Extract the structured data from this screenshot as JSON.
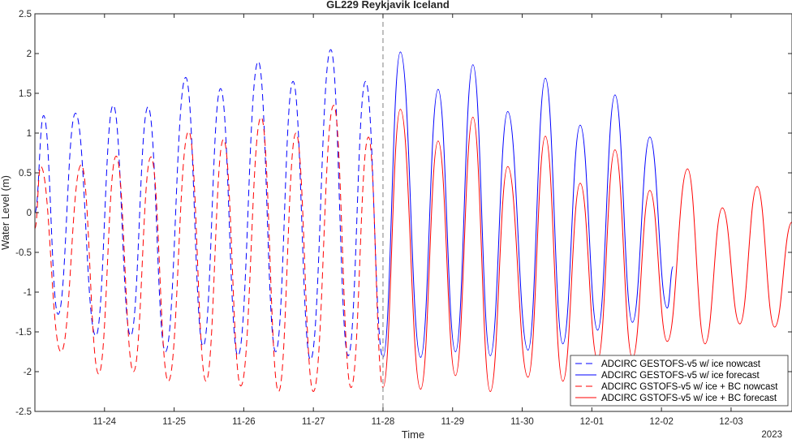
{
  "chart_data": {
    "type": "line",
    "title": "GL229 Reykjavik Iceland",
    "xlabel": "Time",
    "ylabel": "Water Level (m)",
    "year_label": "2023",
    "xlim": [
      "2022-11-23T00:00",
      "2022-12-03T21:00"
    ],
    "ylim": [
      -2.5,
      2.5
    ],
    "yticks": [
      -2.5,
      -2,
      -1.5,
      -1,
      -0.5,
      0,
      0.5,
      1,
      1.5,
      2,
      2.5
    ],
    "ytick_labels": [
      "-2.5",
      "-2",
      "-1.5",
      "-1",
      "-0.5",
      "0",
      "0.5",
      "1",
      "1.5",
      "2",
      "2.5"
    ],
    "xticks": [
      "2022-11-24",
      "2022-11-25",
      "2022-11-26",
      "2022-11-27",
      "2022-11-28",
      "2022-11-29",
      "2022-11-30",
      "2022-12-01",
      "2022-12-02",
      "2022-12-03"
    ],
    "xtick_labels": [
      "11-24",
      "11-25",
      "11-26",
      "11-27",
      "11-28",
      "11-29",
      "11-30",
      "12-01",
      "12-02",
      "12-03"
    ],
    "nowcast_forecast_divider": "2022-11-28T00:00",
    "legend_location": "lower-right",
    "series": [
      {
        "name": "ADCIRC GESTOFS-v5 w/ ice nowcast",
        "color": "#0000ff",
        "linestyle": "dashed",
        "points": [
          [
            "2022-11-23T00:00",
            0.0
          ],
          [
            "2022-11-23T03:00",
            1.22
          ],
          [
            "2022-11-23T08:00",
            -1.28
          ],
          [
            "2022-11-23T14:00",
            1.25
          ],
          [
            "2022-11-23T21:00",
            -1.55
          ],
          [
            "2022-11-24T03:00",
            1.35
          ],
          [
            "2022-11-24T09:00",
            -1.55
          ],
          [
            "2022-11-24T15:00",
            1.33
          ],
          [
            "2022-11-24T21:00",
            -1.75
          ],
          [
            "2022-11-25T04:00",
            1.7
          ],
          [
            "2022-11-25T10:00",
            -1.68
          ],
          [
            "2022-11-25T16:00",
            1.56
          ],
          [
            "2022-11-25T22:00",
            -1.8
          ],
          [
            "2022-11-26T05:00",
            1.9
          ],
          [
            "2022-11-26T11:00",
            -1.75
          ],
          [
            "2022-11-26T17:00",
            1.65
          ],
          [
            "2022-11-26T23:00",
            -1.85
          ],
          [
            "2022-11-27T06:00",
            2.05
          ],
          [
            "2022-11-27T12:00",
            -1.8
          ],
          [
            "2022-11-27T18:00",
            1.65
          ],
          [
            "2022-11-28T00:00",
            -1.82
          ]
        ]
      },
      {
        "name": "ADCIRC GESTOFS-v5 w/ ice forecast",
        "color": "#0000ff",
        "linestyle": "solid",
        "points": [
          [
            "2022-11-28T00:00",
            -1.82
          ],
          [
            "2022-11-28T06:00",
            2.02
          ],
          [
            "2022-11-28T13:00",
            -1.82
          ],
          [
            "2022-11-28T19:00",
            1.55
          ],
          [
            "2022-11-29T01:00",
            -1.75
          ],
          [
            "2022-11-29T07:00",
            1.86
          ],
          [
            "2022-11-29T13:00",
            -1.8
          ],
          [
            "2022-11-29T19:00",
            1.27
          ],
          [
            "2022-11-30T02:00",
            -1.73
          ],
          [
            "2022-11-30T08:00",
            1.69
          ],
          [
            "2022-11-30T14:00",
            -1.65
          ],
          [
            "2022-11-30T20:00",
            1.1
          ],
          [
            "2022-12-01T02:00",
            -1.48
          ],
          [
            "2022-12-01T08:00",
            1.48
          ],
          [
            "2022-12-01T14:00",
            -1.38
          ],
          [
            "2022-12-01T20:00",
            0.95
          ],
          [
            "2022-12-02T02:00",
            -1.2
          ],
          [
            "2022-12-02T04:00",
            -0.68
          ]
        ]
      },
      {
        "name": "ADCIRC GSTOFS-v5 w/ ice + BC nowcast",
        "color": "#ff0000",
        "linestyle": "dashed",
        "points": [
          [
            "2022-11-23T00:00",
            -0.2
          ],
          [
            "2022-11-23T02:00",
            0.58
          ],
          [
            "2022-11-23T09:00",
            -1.75
          ],
          [
            "2022-11-23T16:00",
            0.6
          ],
          [
            "2022-11-23T22:00",
            -2.03
          ],
          [
            "2022-11-24T04:00",
            0.71
          ],
          [
            "2022-11-24T10:00",
            -2.0
          ],
          [
            "2022-11-24T16:00",
            0.7
          ],
          [
            "2022-11-24T22:00",
            -2.12
          ],
          [
            "2022-11-25T05:00",
            1.02
          ],
          [
            "2022-11-25T11:00",
            -2.12
          ],
          [
            "2022-11-25T17:00",
            0.92
          ],
          [
            "2022-11-25T23:00",
            -2.18
          ],
          [
            "2022-11-26T06:00",
            1.2
          ],
          [
            "2022-11-26T12:00",
            -2.25
          ],
          [
            "2022-11-26T18:00",
            1.0
          ],
          [
            "2022-11-27T00:00",
            -2.25
          ],
          [
            "2022-11-27T07:00",
            1.35
          ],
          [
            "2022-11-27T13:00",
            -2.2
          ],
          [
            "2022-11-27T19:00",
            0.95
          ],
          [
            "2022-11-28T00:00",
            -2.2
          ]
        ]
      },
      {
        "name": "ADCIRC GSTOFS-v5 w/ ice + BC forecast",
        "color": "#ff0000",
        "linestyle": "solid",
        "points": [
          [
            "2022-11-28T00:00",
            -2.2
          ],
          [
            "2022-11-28T06:00",
            1.3
          ],
          [
            "2022-11-28T13:00",
            -2.22
          ],
          [
            "2022-11-28T19:00",
            0.9
          ],
          [
            "2022-11-29T01:00",
            -2.05
          ],
          [
            "2022-11-29T07:00",
            1.2
          ],
          [
            "2022-11-29T13:00",
            -2.25
          ],
          [
            "2022-11-29T19:00",
            0.58
          ],
          [
            "2022-11-30T02:00",
            -2.07
          ],
          [
            "2022-11-30T08:00",
            0.96
          ],
          [
            "2022-11-30T14:00",
            -2.12
          ],
          [
            "2022-11-30T20:00",
            0.37
          ],
          [
            "2022-12-01T02:00",
            -1.85
          ],
          [
            "2022-12-01T08:00",
            0.79
          ],
          [
            "2022-12-01T14:00",
            -1.83
          ],
          [
            "2022-12-01T20:00",
            0.28
          ],
          [
            "2022-12-02T02:00",
            -1.62
          ],
          [
            "2022-12-02T09:00",
            0.55
          ],
          [
            "2022-12-02T15:00",
            -1.65
          ],
          [
            "2022-12-02T21:00",
            0.06
          ],
          [
            "2022-12-03T03:00",
            -1.4
          ],
          [
            "2022-12-03T09:00",
            0.33
          ],
          [
            "2022-12-03T15:00",
            -1.44
          ],
          [
            "2022-12-03T21:00",
            -0.12
          ]
        ]
      }
    ]
  }
}
